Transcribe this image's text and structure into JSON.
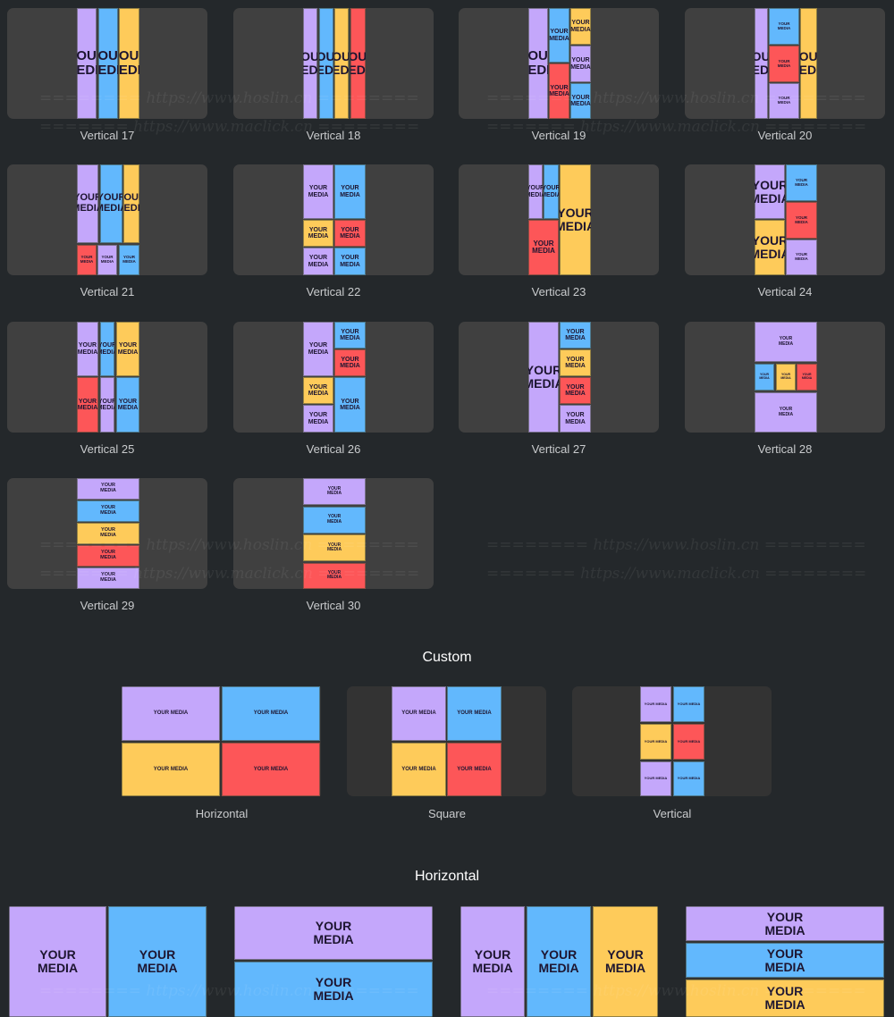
{
  "palette": {
    "purple": "#c4a7fb",
    "blue": "#62b8fd",
    "yellow": "#fecb5a",
    "red": "#fd5658",
    "background": "#24282b",
    "card": "#404040"
  },
  "vertical_cards": [
    {
      "label": "Vertical 17",
      "tiles": [
        {
          "color": "purple",
          "text": "YOUR MEDIA"
        },
        {
          "color": "blue",
          "text": "YOUR MEDIA"
        },
        {
          "color": "yellow",
          "text": "YOUR MEDIA"
        }
      ]
    },
    {
      "label": "Vertical 18",
      "tiles": [
        {
          "color": "purple",
          "text": "YOUR MEDIA"
        },
        {
          "color": "blue",
          "text": "YOUR MEDIA"
        },
        {
          "color": "yellow",
          "text": "YOUR MEDIA"
        },
        {
          "color": "red",
          "text": "YOUR MEDIA"
        }
      ]
    },
    {
      "label": "Vertical 19",
      "tiles": [
        {
          "color": "purple",
          "text": "YOUR MEDIA"
        },
        {
          "color": "blue",
          "text": "YOUR MEDIA"
        },
        {
          "color": "red",
          "text": "YOUR MEDIA"
        },
        {
          "color": "yellow",
          "text": "YOUR MEDIA"
        },
        {
          "color": "purple",
          "text": "YOUR MEDIA"
        },
        {
          "color": "blue",
          "text": "YOUR MEDIA"
        }
      ]
    },
    {
      "label": "Vertical 20",
      "tiles": [
        {
          "color": "purple",
          "text": "YOUR MEDIA"
        },
        {
          "color": "blue",
          "text": "YOUR MEDIA"
        },
        {
          "color": "red",
          "text": "YOUR MEDIA"
        },
        {
          "color": "purple",
          "text": "YOUR MEDIA"
        },
        {
          "color": "yellow",
          "text": "YOUR MEDIA"
        }
      ]
    },
    {
      "label": "Vertical 21",
      "tiles": [
        {
          "color": "purple",
          "text": "YOUR MEDIA"
        },
        {
          "color": "blue",
          "text": "YOUR MEDIA"
        },
        {
          "color": "yellow",
          "text": "YOUR MEDIA"
        },
        {
          "color": "red",
          "text": "YOUR MEDIA"
        },
        {
          "color": "purple",
          "text": "YOUR MEDIA"
        },
        {
          "color": "blue",
          "text": "YOUR MEDIA"
        }
      ]
    },
    {
      "label": "Vertical 22",
      "tiles": [
        {
          "color": "purple",
          "text": "YOUR MEDIA"
        },
        {
          "color": "blue",
          "text": "YOUR MEDIA"
        },
        {
          "color": "yellow",
          "text": "YOUR MEDIA"
        },
        {
          "color": "red",
          "text": "YOUR MEDIA"
        },
        {
          "color": "purple",
          "text": "YOUR MEDIA"
        },
        {
          "color": "blue",
          "text": "YOUR MEDIA"
        }
      ]
    },
    {
      "label": "Vertical 23",
      "tiles": [
        {
          "color": "purple",
          "text": "YOUR MEDIA"
        },
        {
          "color": "blue",
          "text": "YOUR MEDIA"
        },
        {
          "color": "red",
          "text": "YOUR MEDIA"
        },
        {
          "color": "yellow",
          "text": "YOUR MEDIA"
        }
      ]
    },
    {
      "label": "Vertical 24",
      "tiles": [
        {
          "color": "purple",
          "text": "YOUR MEDIA"
        },
        {
          "color": "yellow",
          "text": "YOUR MEDIA"
        },
        {
          "color": "blue",
          "text": "YOUR MEDIA"
        },
        {
          "color": "red",
          "text": "YOUR MEDIA"
        },
        {
          "color": "purple",
          "text": "YOUR MEDIA"
        }
      ]
    },
    {
      "label": "Vertical 25",
      "tiles": [
        {
          "color": "purple",
          "text": "YOUR MEDIA"
        },
        {
          "color": "blue",
          "text": "YOUR MEDIA"
        },
        {
          "color": "yellow",
          "text": "YOUR MEDIA"
        },
        {
          "color": "red",
          "text": "YOUR MEDIA"
        },
        {
          "color": "purple",
          "text": "YOUR MEDIA"
        },
        {
          "color": "blue",
          "text": "YOUR MEDIA"
        }
      ]
    },
    {
      "label": "Vertical 26",
      "tiles": [
        {
          "color": "purple",
          "text": "YOUR MEDIA"
        },
        {
          "color": "yellow",
          "text": "YOUR MEDIA"
        },
        {
          "color": "purple",
          "text": "YOUR MEDIA"
        },
        {
          "color": "blue",
          "text": "YOUR MEDIA"
        },
        {
          "color": "red",
          "text": "YOUR MEDIA"
        },
        {
          "color": "blue",
          "text": "YOUR MEDIA"
        }
      ]
    },
    {
      "label": "Vertical 27",
      "tiles": [
        {
          "color": "purple",
          "text": "YOUR MEDIA"
        },
        {
          "color": "blue",
          "text": "YOUR MEDIA"
        },
        {
          "color": "yellow",
          "text": "YOUR MEDIA"
        },
        {
          "color": "red",
          "text": "YOUR MEDIA"
        },
        {
          "color": "purple",
          "text": "YOUR MEDIA"
        }
      ]
    },
    {
      "label": "Vertical 28",
      "tiles": [
        {
          "color": "purple",
          "text": "YOUR MEDIA"
        },
        {
          "color": "blue",
          "text": "YOUR MEDIA"
        },
        {
          "color": "yellow",
          "text": "YOUR MEDIA"
        },
        {
          "color": "red",
          "text": "YOUR MEDIA"
        },
        {
          "color": "purple",
          "text": "YOUR MEDIA"
        }
      ]
    },
    {
      "label": "Vertical 29",
      "tiles": [
        {
          "color": "purple",
          "text": "YOUR MEDIA"
        },
        {
          "color": "blue",
          "text": "YOUR MEDIA"
        },
        {
          "color": "yellow",
          "text": "YOUR MEDIA"
        },
        {
          "color": "red",
          "text": "YOUR MEDIA"
        },
        {
          "color": "purple",
          "text": "YOUR MEDIA"
        }
      ]
    },
    {
      "label": "Vertical 30",
      "tiles": [
        {
          "color": "purple",
          "text": "YOUR MEDIA"
        },
        {
          "color": "blue",
          "text": "YOUR MEDIA"
        },
        {
          "color": "yellow",
          "text": "YOUR MEDIA"
        },
        {
          "color": "red",
          "text": "YOUR MEDIA"
        }
      ]
    }
  ],
  "custom": {
    "title": "Custom",
    "cards": [
      {
        "label": "Horizontal",
        "tiles": [
          {
            "color": "purple",
            "text": "YOUR MEDIA"
          },
          {
            "color": "blue",
            "text": "YOUR MEDIA"
          },
          {
            "color": "yellow",
            "text": "YOUR MEDIA"
          },
          {
            "color": "red",
            "text": "YOUR MEDIA"
          }
        ]
      },
      {
        "label": "Square",
        "tiles": [
          {
            "color": "purple",
            "text": "YOUR MEDIA"
          },
          {
            "color": "blue",
            "text": "YOUR MEDIA"
          },
          {
            "color": "yellow",
            "text": "YOUR MEDIA"
          },
          {
            "color": "red",
            "text": "YOUR MEDIA"
          }
        ]
      },
      {
        "label": "Vertical",
        "tiles": [
          {
            "color": "purple",
            "text": "YOUR MEDIA"
          },
          {
            "color": "blue",
            "text": "YOUR MEDIA"
          },
          {
            "color": "yellow",
            "text": "YOUR MEDIA"
          },
          {
            "color": "red",
            "text": "YOUR MEDIA"
          },
          {
            "color": "purple",
            "text": "YOUR MEDIA"
          },
          {
            "color": "blue",
            "text": "YOUR MEDIA"
          }
        ]
      }
    ]
  },
  "horizontal": {
    "title": "Horizontal",
    "cards": [
      {
        "tiles": [
          {
            "color": "purple",
            "text": "YOUR MEDIA"
          },
          {
            "color": "blue",
            "text": "YOUR MEDIA"
          }
        ]
      },
      {
        "tiles": [
          {
            "color": "purple",
            "text": "YOUR MEDIA"
          },
          {
            "color": "blue",
            "text": "YOUR MEDIA"
          }
        ]
      },
      {
        "tiles": [
          {
            "color": "purple",
            "text": "YOUR MEDIA"
          },
          {
            "color": "blue",
            "text": "YOUR MEDIA"
          },
          {
            "color": "yellow",
            "text": "YOUR MEDIA"
          }
        ]
      },
      {
        "tiles": [
          {
            "color": "purple",
            "text": "YOUR MEDIA"
          },
          {
            "color": "blue",
            "text": "YOUR MEDIA"
          },
          {
            "color": "yellow",
            "text": "YOUR MEDIA"
          }
        ]
      }
    ]
  },
  "watermarks": [
    "======== https://www.hoslin.cn ========",
    "======= https://www.maclick.cn ========"
  ]
}
